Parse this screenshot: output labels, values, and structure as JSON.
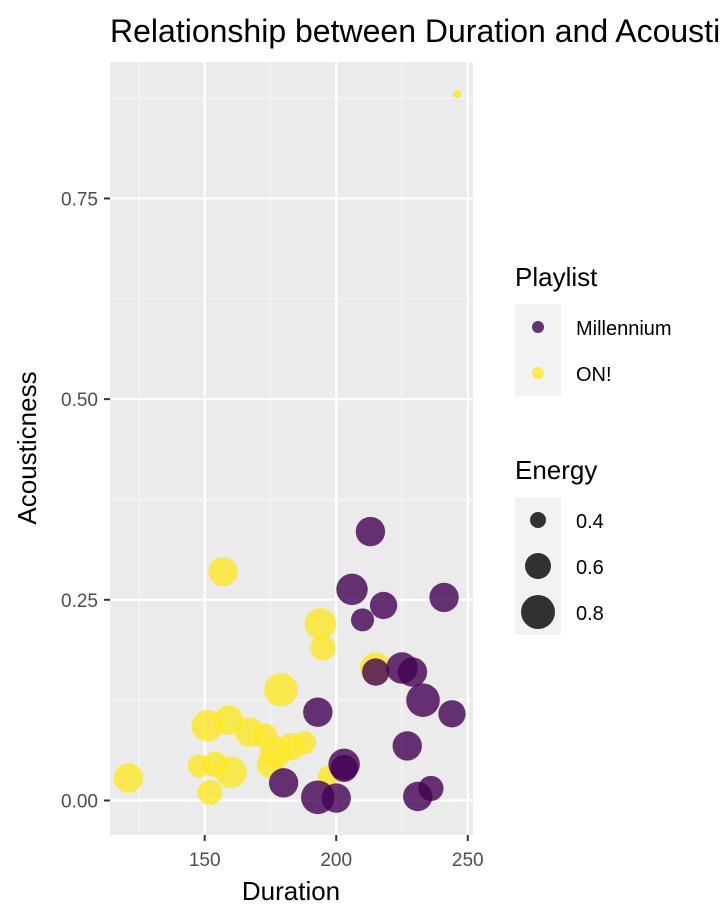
{
  "chart_data": {
    "type": "scatter",
    "title": "Relationship between Duration and Acousticness",
    "xlabel": "Duration",
    "ylabel": "Acousticness",
    "xlim": [
      114,
      252
    ],
    "ylim": [
      -0.043,
      0.92
    ],
    "x_ticks": [
      150,
      200,
      250
    ],
    "x_tick_labels": [
      "150",
      "200",
      "250"
    ],
    "y_ticks": [
      0.0,
      0.25,
      0.5,
      0.75
    ],
    "y_tick_labels": [
      "0.00",
      "0.25",
      "0.50",
      "0.75"
    ],
    "grid": true,
    "legend_position": "right",
    "color_legend": {
      "title": "Playlist",
      "items": [
        {
          "label": "Millennium",
          "color": "#440154"
        },
        {
          "label": "ON!",
          "color": "#FDE725"
        }
      ]
    },
    "size_legend": {
      "title": "Energy",
      "items": [
        {
          "label": "0.4",
          "value": 0.4
        },
        {
          "label": "0.6",
          "value": 0.6
        },
        {
          "label": "0.8",
          "value": 0.8
        }
      ]
    },
    "series": [
      {
        "name": "ON!",
        "color": "#FDE725",
        "points": [
          {
            "x": 246,
            "y": 0.88,
            "energy": 0.2
          },
          {
            "x": 157,
            "y": 0.285,
            "energy": 0.7
          },
          {
            "x": 194,
            "y": 0.22,
            "energy": 0.75
          },
          {
            "x": 195,
            "y": 0.19,
            "energy": 0.6
          },
          {
            "x": 179,
            "y": 0.138,
            "energy": 0.8
          },
          {
            "x": 215,
            "y": 0.165,
            "energy": 0.75
          },
          {
            "x": 151,
            "y": 0.093,
            "energy": 0.75
          },
          {
            "x": 159,
            "y": 0.1,
            "energy": 0.7
          },
          {
            "x": 167,
            "y": 0.085,
            "energy": 0.7
          },
          {
            "x": 173,
            "y": 0.08,
            "energy": 0.6
          },
          {
            "x": 177,
            "y": 0.06,
            "energy": 0.75
          },
          {
            "x": 183,
            "y": 0.067,
            "energy": 0.65
          },
          {
            "x": 188,
            "y": 0.072,
            "energy": 0.55
          },
          {
            "x": 175,
            "y": 0.045,
            "energy": 0.65
          },
          {
            "x": 148,
            "y": 0.043,
            "energy": 0.55
          },
          {
            "x": 154,
            "y": 0.045,
            "energy": 0.6
          },
          {
            "x": 160,
            "y": 0.035,
            "energy": 0.75
          },
          {
            "x": 152,
            "y": 0.01,
            "energy": 0.6
          },
          {
            "x": 121,
            "y": 0.028,
            "energy": 0.7
          },
          {
            "x": 197,
            "y": 0.03,
            "energy": 0.5
          }
        ]
      },
      {
        "name": "Millennium",
        "color": "#440154",
        "points": [
          {
            "x": 213,
            "y": 0.335,
            "energy": 0.7
          },
          {
            "x": 206,
            "y": 0.263,
            "energy": 0.75
          },
          {
            "x": 218,
            "y": 0.243,
            "energy": 0.65
          },
          {
            "x": 241,
            "y": 0.253,
            "energy": 0.7
          },
          {
            "x": 210,
            "y": 0.225,
            "energy": 0.55
          },
          {
            "x": 215,
            "y": 0.16,
            "energy": 0.65
          },
          {
            "x": 225,
            "y": 0.165,
            "energy": 0.75
          },
          {
            "x": 229,
            "y": 0.16,
            "energy": 0.7
          },
          {
            "x": 233,
            "y": 0.125,
            "energy": 0.8
          },
          {
            "x": 244,
            "y": 0.108,
            "energy": 0.65
          },
          {
            "x": 193,
            "y": 0.11,
            "energy": 0.7
          },
          {
            "x": 227,
            "y": 0.068,
            "energy": 0.7
          },
          {
            "x": 203,
            "y": 0.045,
            "energy": 0.75
          },
          {
            "x": 203,
            "y": 0.04,
            "energy": 0.65
          },
          {
            "x": 180,
            "y": 0.022,
            "energy": 0.7
          },
          {
            "x": 236,
            "y": 0.015,
            "energy": 0.6
          },
          {
            "x": 231,
            "y": 0.005,
            "energy": 0.7
          },
          {
            "x": 193,
            "y": 0.004,
            "energy": 0.8
          },
          {
            "x": 200,
            "y": 0.003,
            "energy": 0.7
          }
        ]
      }
    ]
  }
}
